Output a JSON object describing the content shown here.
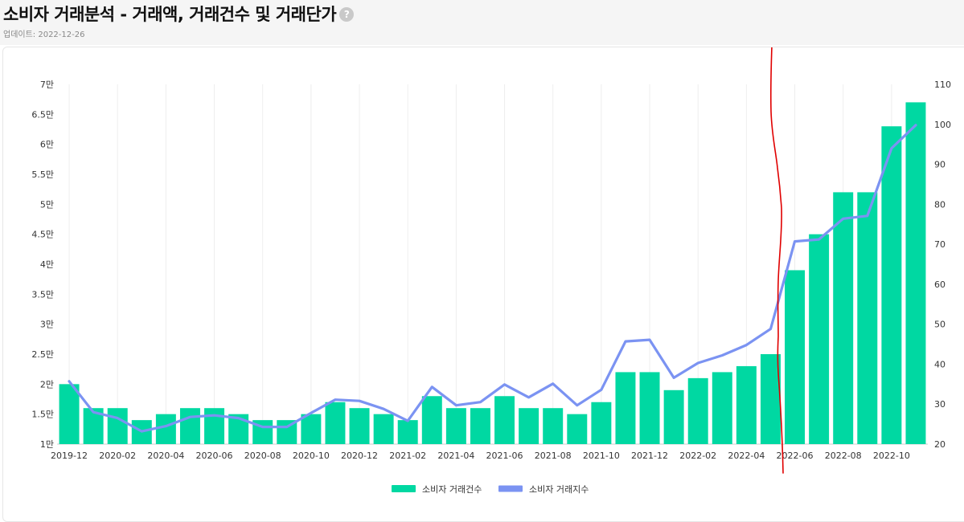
{
  "header": {
    "title": "소비자 거래분석 - 거래액, 거래건수 및 거래단가",
    "help_icon": "?",
    "updated": "업데이트: 2022-12-26"
  },
  "colors": {
    "bar": "#00d8a2",
    "line": "#7b93f2",
    "grid": "#eeeeee",
    "annotation": "#e00000"
  },
  "chart_data": {
    "type": "bar",
    "x": [
      "2019-12",
      "2020-01",
      "2020-02",
      "2020-03",
      "2020-04",
      "2020-05",
      "2020-06",
      "2020-07",
      "2020-08",
      "2020-09",
      "2020-10",
      "2020-11",
      "2020-12",
      "2021-01",
      "2021-02",
      "2021-03",
      "2021-04",
      "2021-05",
      "2021-06",
      "2021-07",
      "2021-08",
      "2021-09",
      "2021-10",
      "2021-11",
      "2021-12",
      "2022-01",
      "2022-02",
      "2022-03",
      "2022-04",
      "2022-05",
      "2022-06",
      "2022-07",
      "2022-08",
      "2022-09",
      "2022-10",
      "2022-11"
    ],
    "x_tick_labels": [
      "2019-12",
      "2020-02",
      "2020-04",
      "2020-06",
      "2020-08",
      "2020-10",
      "2020-12",
      "2021-02",
      "2021-04",
      "2021-06",
      "2021-08",
      "2021-10",
      "2021-12",
      "2022-02",
      "2022-04",
      "2022-06",
      "2022-08",
      "2022-10"
    ],
    "series": [
      {
        "name": "소비자 거래건수",
        "type": "bar",
        "axis": "left",
        "values": [
          20000,
          16000,
          16000,
          14000,
          15000,
          16000,
          16000,
          15000,
          14000,
          14000,
          15000,
          17000,
          16000,
          15000,
          14000,
          18000,
          16000,
          16000,
          18000,
          16000,
          16000,
          15000,
          17000,
          22000,
          22000,
          19000,
          21000,
          22000,
          23000,
          25000,
          39000,
          45000,
          52000,
          52000,
          63000,
          67000
        ]
      },
      {
        "name": "소비자 거래지수",
        "type": "line",
        "axis": "right",
        "values": [
          35.7,
          28.0,
          26.5,
          23.2,
          24.5,
          26.8,
          27.2,
          26.5,
          24.3,
          24.3,
          27.8,
          31.1,
          30.8,
          28.8,
          25.8,
          34.3,
          29.7,
          30.5,
          34.9,
          31.7,
          35.1,
          29.7,
          33.6,
          45.7,
          46.1,
          36.6,
          40.3,
          42.2,
          44.8,
          48.8,
          70.7,
          71.2,
          76.4,
          77.1,
          94.0,
          99.8
        ]
      }
    ],
    "y_left": {
      "ylim": [
        10000,
        70000
      ],
      "tick_labels": [
        "1만",
        "1.5만",
        "2만",
        "2.5만",
        "3만",
        "3.5만",
        "4만",
        "4.5만",
        "5만",
        "5.5만",
        "6만",
        "6.5만",
        "7만"
      ]
    },
    "y_right": {
      "ylim": [
        20,
        110
      ],
      "tick_labels": [
        "20",
        "30",
        "40",
        "50",
        "60",
        "70",
        "80",
        "90",
        "100",
        "110"
      ]
    },
    "grid": "vertical",
    "legend": "bottom-center"
  }
}
